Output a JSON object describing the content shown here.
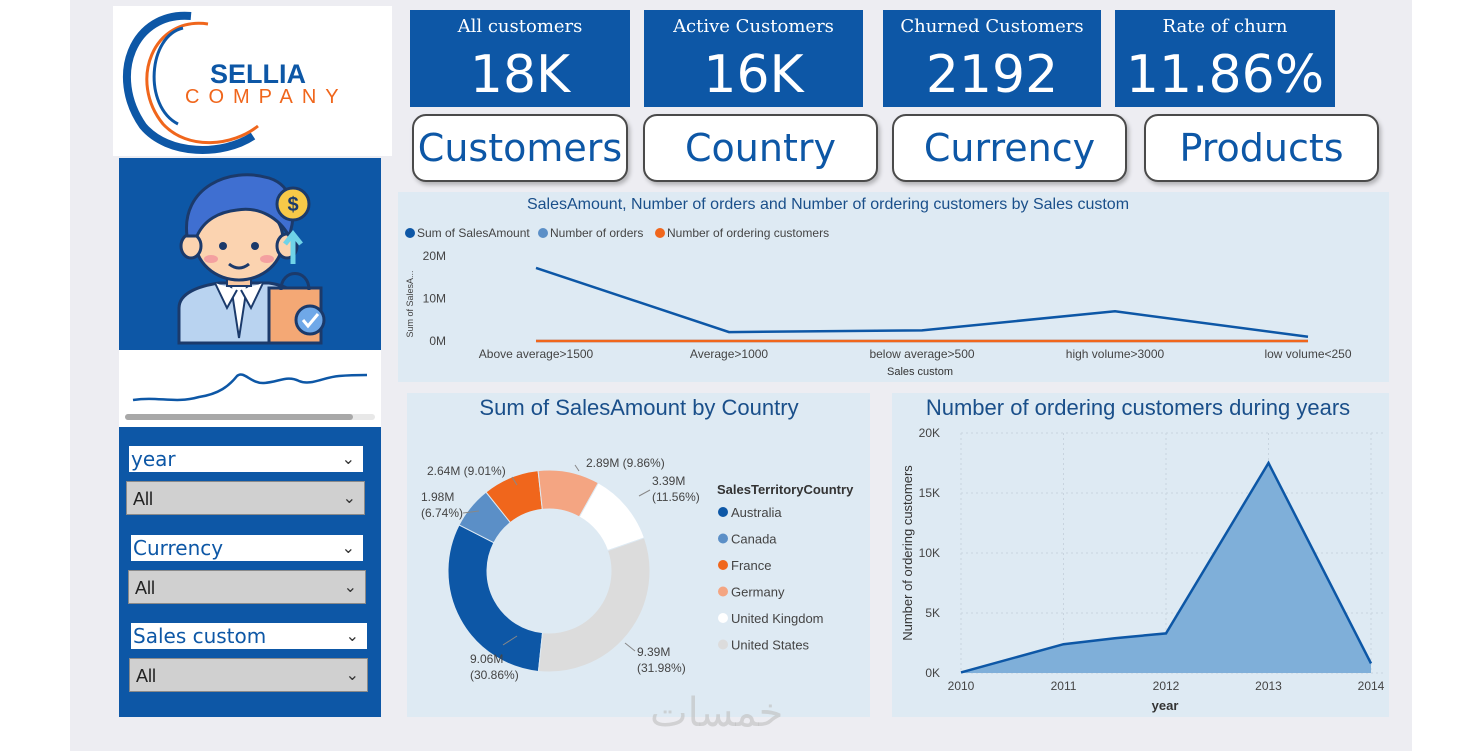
{
  "logo": {
    "line1": "SELLIA",
    "line2": "COMPANY"
  },
  "kpis": [
    {
      "title": "All customers",
      "value": "18K"
    },
    {
      "title": "Active Customers",
      "value": "16K"
    },
    {
      "title": "Churned Customers",
      "value": "2192"
    },
    {
      "title": "Rate of churn",
      "value": "11.86%"
    }
  ],
  "nav": [
    "Customers",
    "Country",
    "Currency",
    "Products"
  ],
  "slicers": [
    {
      "label": "year",
      "value": "All"
    },
    {
      "label": "Currency",
      "value": "All"
    },
    {
      "label": "Sales custom",
      "value": "All"
    }
  ],
  "colors": {
    "primary": "#0d57a6",
    "lightblue": "#5b8fc7",
    "orange": "#f0661c",
    "peach": "#f4a582",
    "grey": "#dcdcdc",
    "panel": "#deeaf3",
    "area": "#7fafd9"
  },
  "chart_data": [
    {
      "type": "line",
      "title": "SalesAmount, Number of orders and Number of ordering customers by Sales custom",
      "categories": [
        "Above average>1500",
        "Average>1000",
        "below average>500",
        "high volume>3000",
        "low volume<250"
      ],
      "series": [
        {
          "name": "Sum of SalesAmount",
          "values": [
            17.2,
            2.1,
            2.5,
            7.0,
            1.0
          ]
        },
        {
          "name": "Number of orders",
          "values": [
            0,
            0,
            0,
            0,
            0
          ]
        },
        {
          "name": "Number of ordering customers",
          "values": [
            0,
            0,
            0,
            0,
            0
          ]
        }
      ],
      "yticks": [
        "0M",
        "10M",
        "20M"
      ],
      "ylim": [
        0,
        20
      ],
      "xlabel": "Sales custom",
      "ylabel": "Sum of SalesA..."
    },
    {
      "type": "pie",
      "title": "Sum of SalesAmount by Country",
      "legend_title": "SalesTerritoryCountry",
      "slices": [
        {
          "label": "Australia",
          "value": 9.06,
          "text": "9.06M",
          "pct": "(30.86%)"
        },
        {
          "label": "Canada",
          "value": 1.98,
          "text": "1.98M",
          "pct": "(6.74%)"
        },
        {
          "label": "France",
          "value": 2.64,
          "text": "2.64M (9.01%)",
          "pct": ""
        },
        {
          "label": "Germany",
          "value": 2.89,
          "text": "2.89M (9.86%)",
          "pct": ""
        },
        {
          "label": "United Kingdom",
          "value": 3.39,
          "text": "3.39M",
          "pct": "(11.56%)"
        },
        {
          "label": "United States",
          "value": 9.39,
          "text": "9.39M",
          "pct": "(31.98%)"
        }
      ]
    },
    {
      "type": "area",
      "title": "Number of ordering customers during years",
      "x": [
        "2010",
        "2011",
        "2012",
        "2013",
        "2014"
      ],
      "values": [
        50,
        2400,
        3300,
        17500,
        800
      ],
      "extra_point": {
        "x": 2011.5,
        "value": 2900
      },
      "yticks": [
        "0K",
        "5K",
        "10K",
        "15K",
        "20K"
      ],
      "ylim": [
        0,
        20000
      ],
      "xlabel": "year",
      "ylabel": "Number of ordering customers"
    }
  ],
  "watermark": "خمسات"
}
